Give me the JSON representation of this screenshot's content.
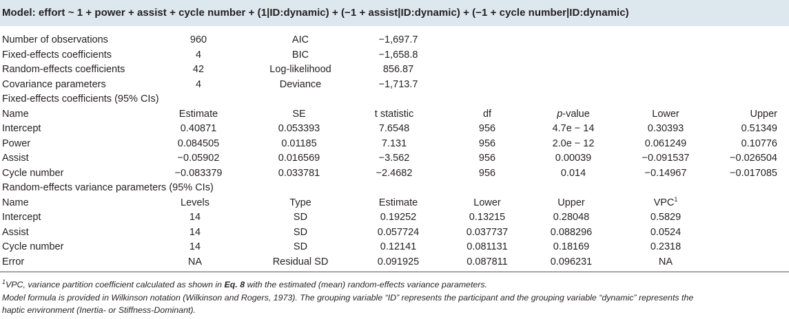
{
  "model_title": "Model: effort ~ 1 + power + assist + cycle number + (1|ID:dynamic) + (−1 + assist|ID:dynamic) + (−1 + cycle number|ID:dynamic)",
  "summary": [
    {
      "label": "Number of observations",
      "value": "960",
      "stat_label": "AIC",
      "stat_value": "−1,697.7"
    },
    {
      "label": "Fixed-effects coefficients",
      "value": "4",
      "stat_label": "BIC",
      "stat_value": "−1,658.8"
    },
    {
      "label": "Random-effects coefficients",
      "value": "42",
      "stat_label": "Log-likelihood",
      "stat_value": "856.87"
    },
    {
      "label": "Covariance parameters",
      "value": "4",
      "stat_label": "Deviance",
      "stat_value": "−1,713.7"
    }
  ],
  "fixed_effects": {
    "section_title": "Fixed-effects coefficients (95% CIs)",
    "headers": {
      "name": "Name",
      "estimate": "Estimate",
      "se": "SE",
      "tstat": "t statistic",
      "df": "df",
      "pvalue_italic": "p",
      "pvalue_rest": "-value",
      "lower": "Lower",
      "upper": "Upper"
    },
    "rows": [
      {
        "name": "Intercept",
        "estimate": "0.40871",
        "se": "0.053393",
        "tstat": "7.6548",
        "df": "956",
        "pvalue": "4.7e − 14",
        "lower": "0.30393",
        "upper": "0.51349"
      },
      {
        "name": "Power",
        "estimate": "0.084505",
        "se": "0.01185",
        "tstat": "7.131",
        "df": "956",
        "pvalue": "2.0e − 12",
        "lower": "0.061249",
        "upper": "0.10776"
      },
      {
        "name": "Assist",
        "estimate": "−0.05902",
        "se": "0.016569",
        "tstat": "−3.562",
        "df": "956",
        "pvalue": "0.00039",
        "lower": "−0.091537",
        "upper": "−0.026504"
      },
      {
        "name": "Cycle number",
        "estimate": "−0.083379",
        "se": "0.033781",
        "tstat": "−2.4682",
        "df": "956",
        "pvalue": "0.014",
        "lower": "−0.14967",
        "upper": "−0.017085"
      }
    ]
  },
  "random_effects": {
    "section_title": "Random-effects variance parameters (95% CIs)",
    "headers": {
      "name": "Name",
      "levels": "Levels",
      "type": "Type",
      "estimate": "Estimate",
      "lower": "Lower",
      "upper": "Upper",
      "vpc": "VPC",
      "vpc_sup": "1"
    },
    "rows": [
      {
        "name": "Intercept",
        "levels": "14",
        "type": "SD",
        "estimate": "0.19252",
        "lower": "0.13215",
        "upper": "0.28048",
        "vpc": "0.5829"
      },
      {
        "name": "Assist",
        "levels": "14",
        "type": "SD",
        "estimate": "0.057724",
        "lower": "0.037737",
        "upper": "0.088296",
        "vpc": "0.0524"
      },
      {
        "name": "Cycle number",
        "levels": "14",
        "type": "SD",
        "estimate": "0.12141",
        "lower": "0.081131",
        "upper": "0.18169",
        "vpc": "0.2318"
      },
      {
        "name": "Error",
        "levels": "NA",
        "type": "Residual SD",
        "estimate": "0.091925",
        "lower": "0.087811",
        "upper": "0.096231",
        "vpc": "NA"
      }
    ]
  },
  "footnotes": {
    "note1_sup": "1",
    "note1_before": "VPC, variance partition coefficient calculated as shown in ",
    "note1_eq": "Eq. 8",
    "note1_after": " with the estimated (mean) random-effects variance parameters.",
    "note2_line1": "Model formula is provided in Wilkinson notation (Wilkinson and Rogers, 1973). The grouping variable “ID” represents the participant and the grouping variable “dynamic” represents the",
    "note2_line2": "haptic environment (Inertia- or Stiffness-Dominant)."
  }
}
